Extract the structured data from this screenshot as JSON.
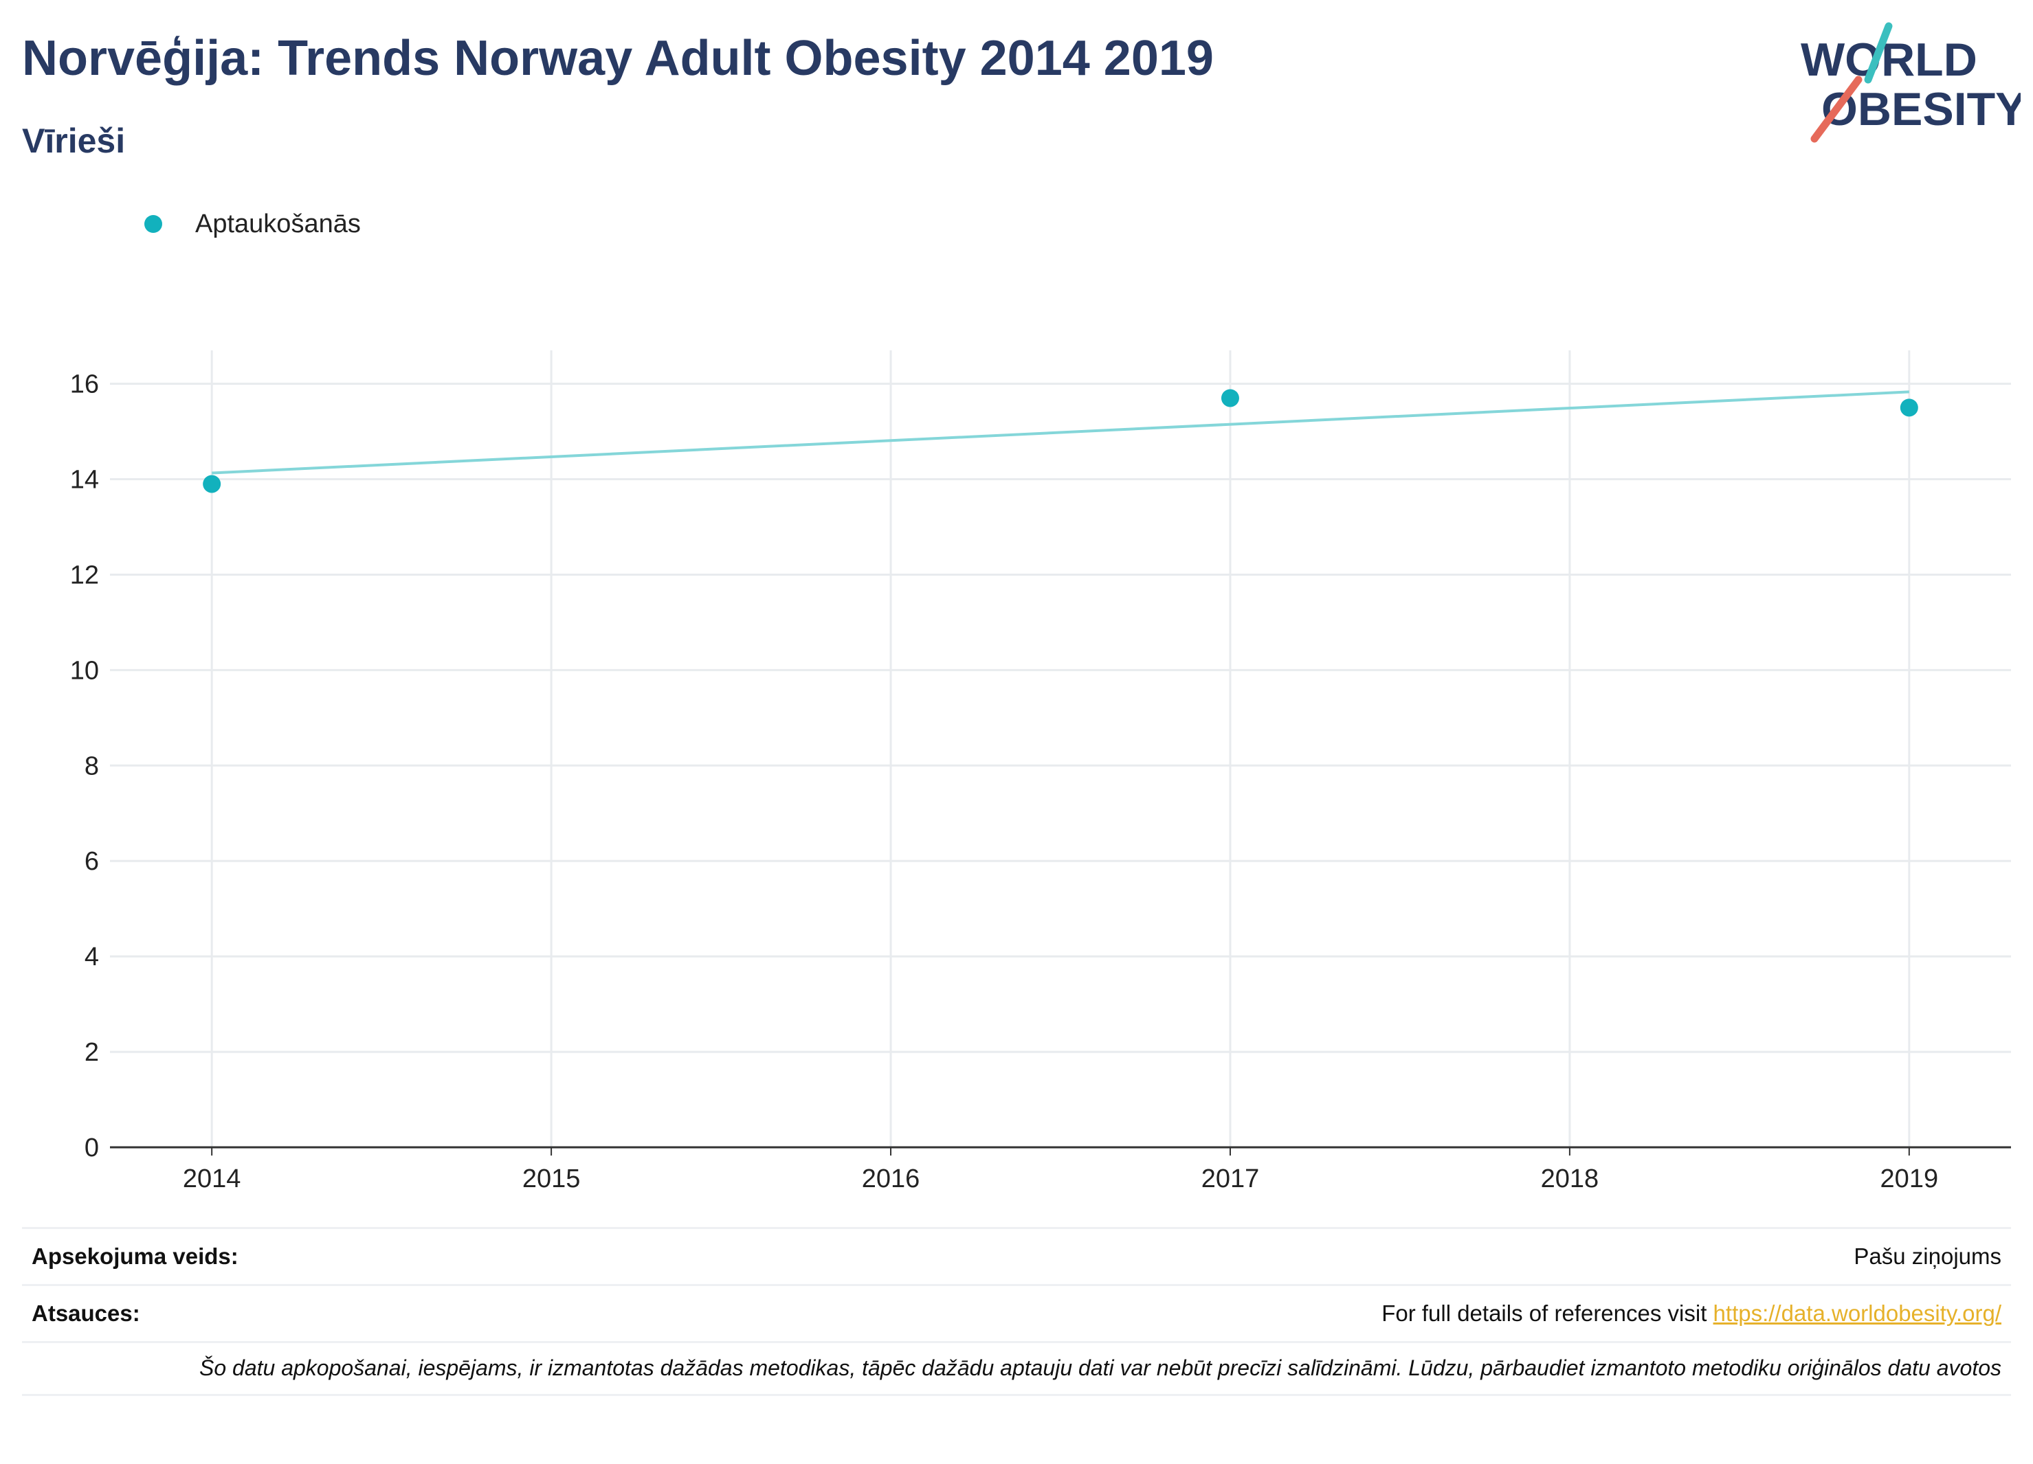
{
  "header": {
    "title": "Norvēģija: Trends Norway Adult Obesity 2014 2019",
    "subtitle": "Vīrieši"
  },
  "logo": {
    "line1": "WORLD",
    "line2": "OBESITY",
    "icon": "world-obesity-logo"
  },
  "colors": {
    "series": "#12b1bd",
    "trend": "#84d6d9",
    "title": "#283a63",
    "link": "#e6b12a",
    "logo_teal": "#3bbfbf",
    "logo_red": "#e66a5a"
  },
  "chart_data": {
    "type": "scatter",
    "x": [
      2014,
      2017,
      2019
    ],
    "series": [
      {
        "name": "Aptaukošanās",
        "values": [
          13.9,
          15.7,
          15.5
        ]
      }
    ],
    "trendline": {
      "x": [
        2014,
        2019
      ],
      "values": [
        14.13,
        15.83
      ]
    },
    "xlim": [
      2013.7,
      2019.3
    ],
    "ylim": [
      0,
      16.7
    ],
    "xticks": [
      2014,
      2015,
      2016,
      2017,
      2018,
      2019
    ],
    "yticks": [
      0,
      2,
      4,
      6,
      8,
      10,
      12,
      14,
      16
    ],
    "grid": true,
    "legend": "top-left"
  },
  "footer": {
    "survey_label": "Apsekojuma veids:",
    "survey_value": "Pašu ziņojums",
    "refs_label": "Atsauces:",
    "refs_text": "For full details of references visit",
    "refs_link": "https://data.worldobesity.org/",
    "note": "Šo datu apkopošanai, iespējams, ir izmantotas dažādas metodikas, tāpēc dažādu aptauju dati var nebūt precīzi salīdzināmi. Lūdzu, pārbaudiet izmantoto metodiku oriģinālos datu avotos"
  }
}
